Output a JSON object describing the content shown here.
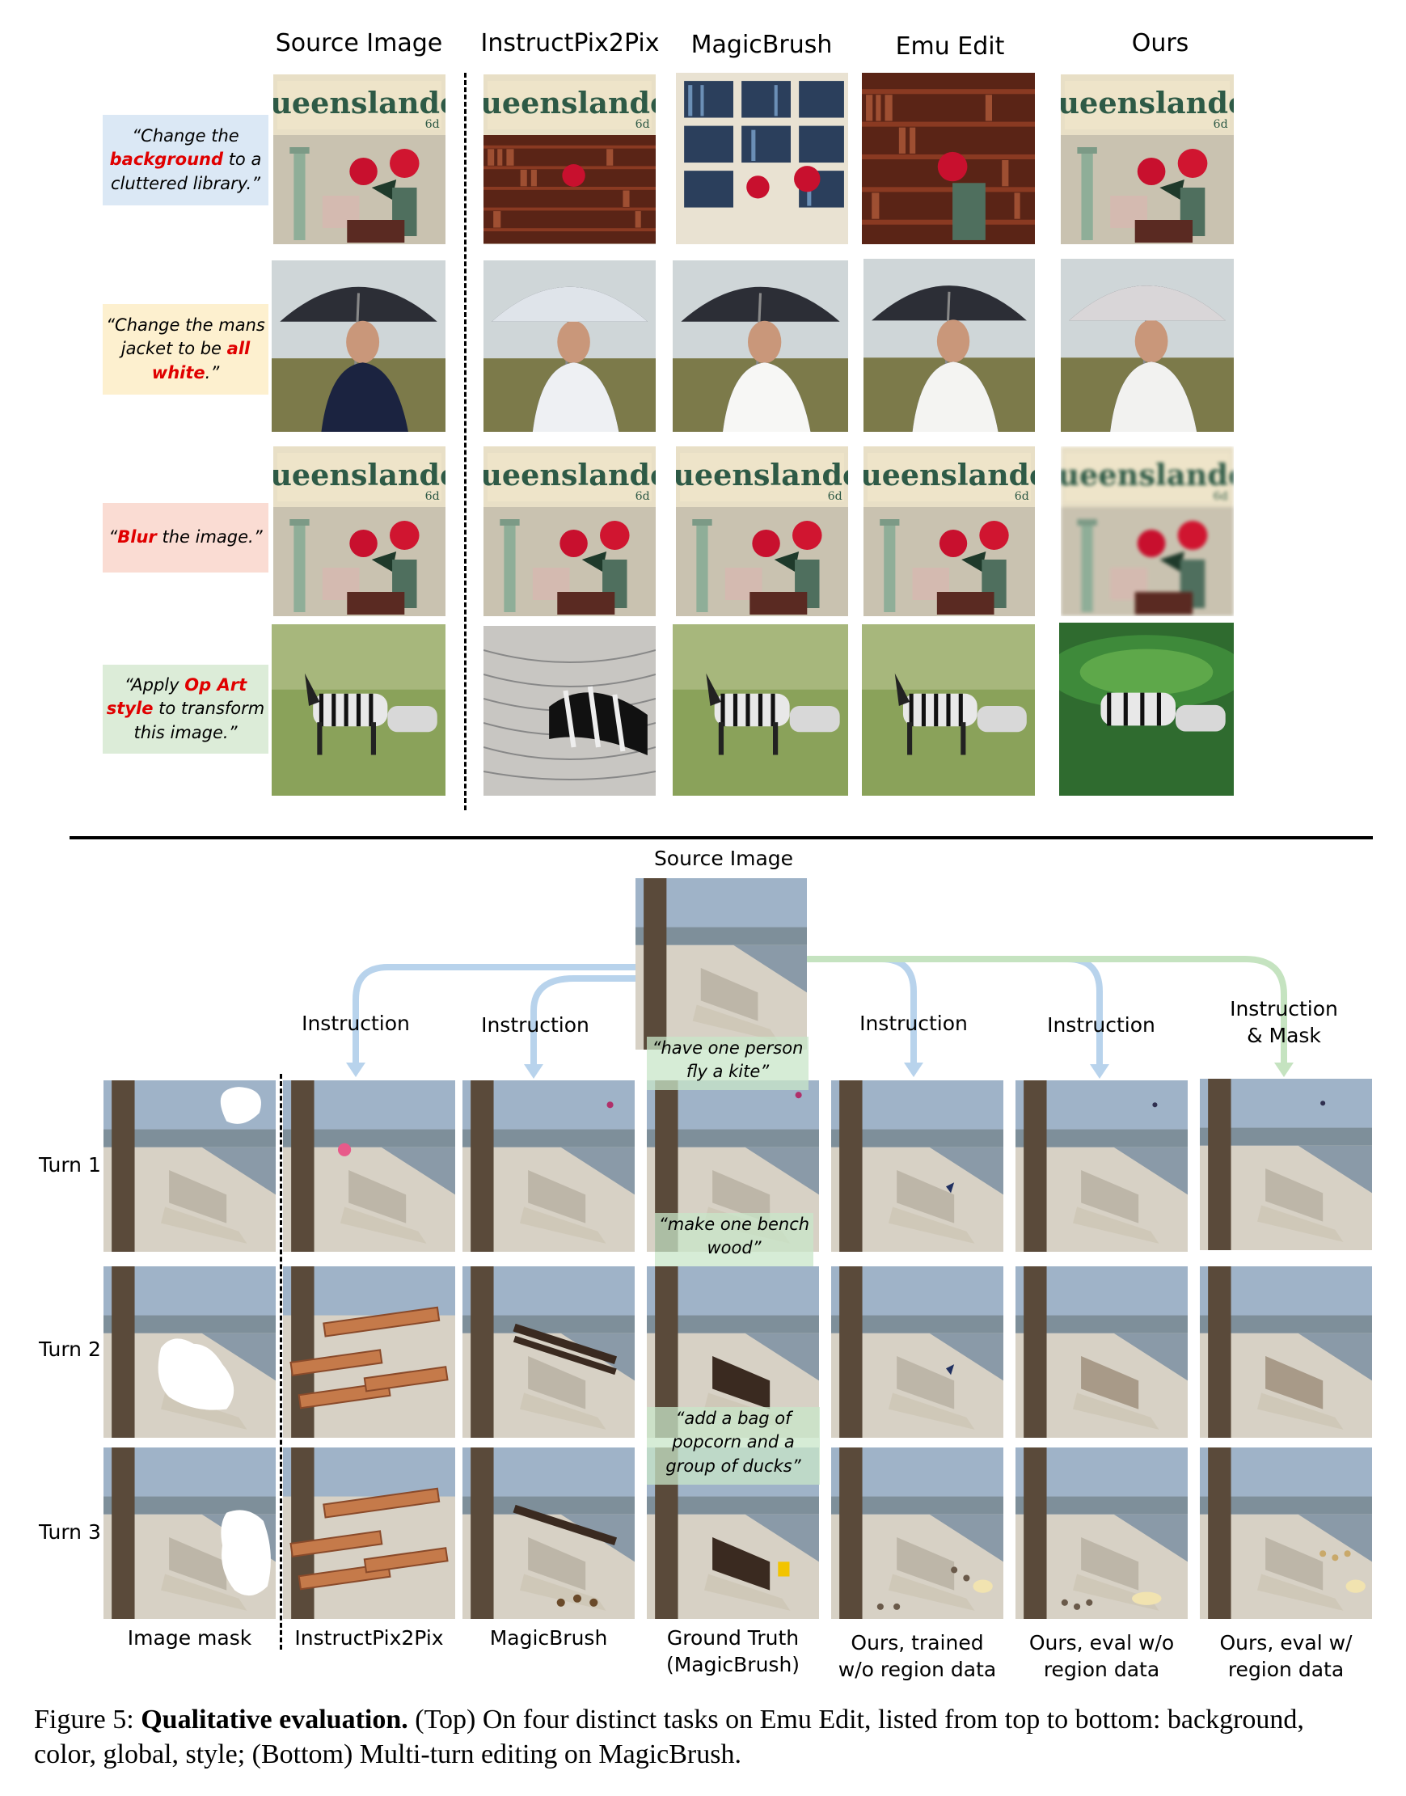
{
  "top": {
    "columns": [
      "Source Image",
      "InstructPix2Pix",
      "MagicBrush",
      "Emu Edit",
      "Ours"
    ],
    "rows": [
      {
        "pre": "“Change the",
        "hl": "background",
        "post": "to a cluttered library.”",
        "bg": "#dbe8f5"
      },
      {
        "pre": "“Change the mans jacket to be",
        "hl": "all white",
        "post": ".”",
        "bg": "#fdf0cf"
      },
      {
        "pre": "“",
        "hl": "Blur",
        "post": "the image.”",
        "bg": "#fadcd3"
      },
      {
        "pre": "“Apply",
        "hl": "Op Art style",
        "post": "to transform this image.”",
        "bg": "#dcecd8"
      }
    ],
    "magazine_title": "Queenslander"
  },
  "bottom": {
    "source_label": "Source Image",
    "instruction_label": "Instruction",
    "instruction_mask_label": "Instruction & Mask",
    "turns": [
      "Turn 1",
      "Turn 2",
      "Turn 3"
    ],
    "prompts": [
      "“have one person fly a kite”",
      "“make one bench wood”",
      "“add a bag of popcorn and a group of ducks”"
    ],
    "column_labels": [
      "Image mask",
      "InstructPix2Pix",
      "MagicBrush",
      "Ground Truth (MagicBrush)",
      "Ours, trained w/o region data",
      "Ours, eval w/o region data",
      "Ours, eval w/ region data"
    ]
  },
  "caption": {
    "prefix": "Figure 5:",
    "bold": "Qualitative evaluation.",
    "text": "(Top) On four distinct tasks on Emu Edit, listed from top to bottom: background, color, global, style; (Bottom) Multi-turn editing on MagicBrush."
  },
  "colors": {
    "arrow_blue": "#b8d3ec",
    "arrow_green": "#c5e3c0",
    "highlight": "#e00000"
  }
}
